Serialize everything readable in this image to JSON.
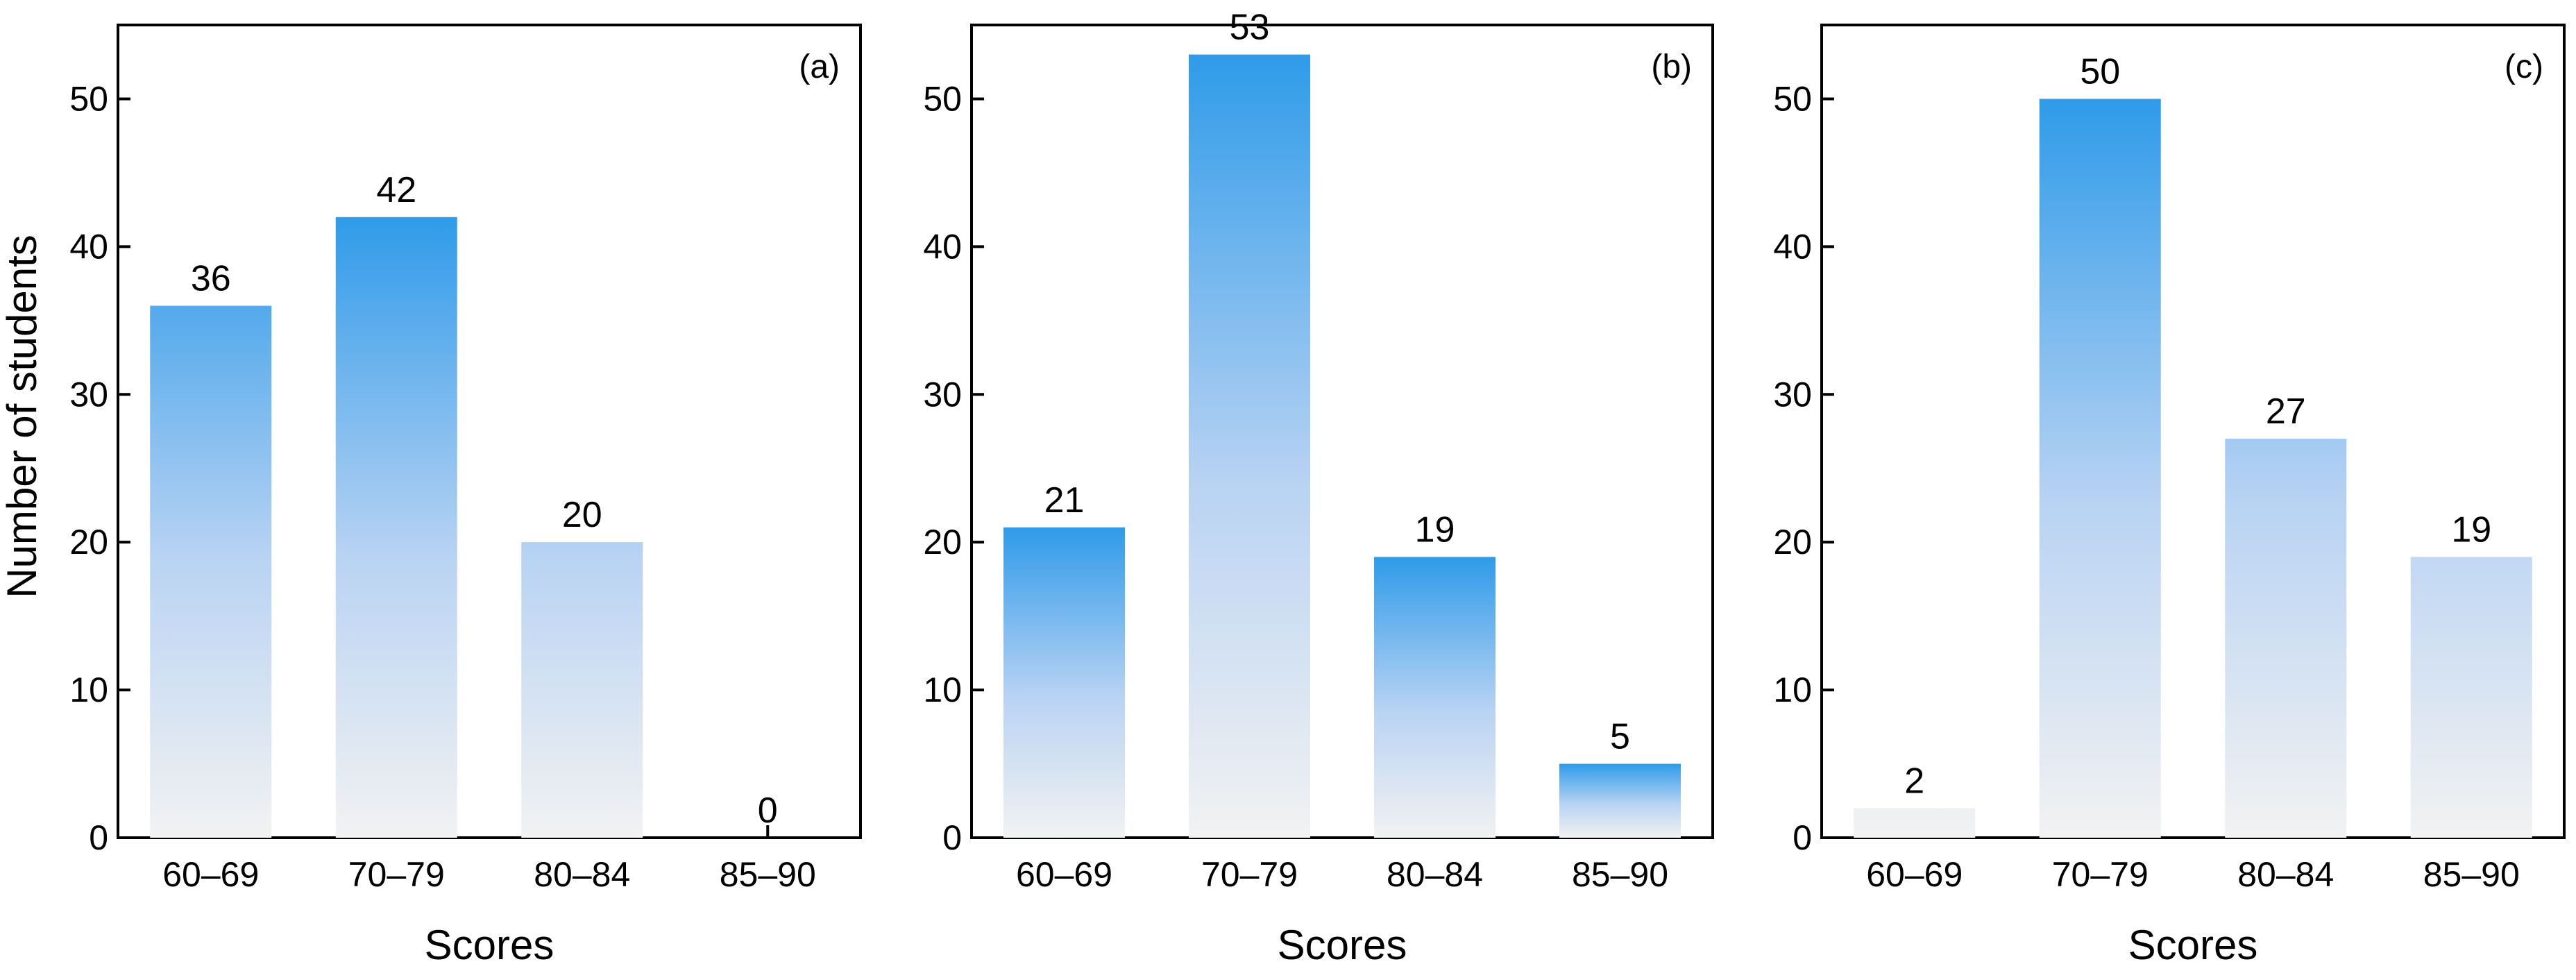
{
  "chart_data": [
    {
      "type": "bar",
      "panel_label": "(a)",
      "categories": [
        "60–69",
        "70–79",
        "80–84",
        "85–90"
      ],
      "values": [
        36,
        42,
        20,
        0
      ],
      "data_labels": [
        "36",
        "42",
        "20",
        "0"
      ],
      "xlabel": "Scores",
      "ylabel": "Number of students",
      "ylim": [
        0,
        55
      ],
      "yticks": [
        "0",
        "10",
        "20",
        "30",
        "40",
        "50"
      ],
      "grid": false,
      "gradient": "vertical, light grey at base to blue at the tallest bar's top"
    },
    {
      "type": "bar",
      "panel_label": "(b)",
      "categories": [
        "60–69",
        "70–79",
        "80–84",
        "85–90"
      ],
      "values": [
        21,
        53,
        19,
        5
      ],
      "data_labels": [
        "21",
        "53",
        "19",
        "5"
      ],
      "xlabel": "Scores",
      "ylabel": "",
      "ylim": [
        0,
        55
      ],
      "yticks": [
        "0",
        "10",
        "20",
        "30",
        "40",
        "50"
      ],
      "grid": false,
      "gradient": "vertical, light grey at base to blue at top"
    },
    {
      "type": "bar",
      "panel_label": "(c)",
      "categories": [
        "60–69",
        "70–79",
        "80–84",
        "85–90"
      ],
      "values": [
        2,
        50,
        27,
        19
      ],
      "data_labels": [
        "2",
        "50",
        "27",
        "19"
      ],
      "xlabel": "Scores",
      "ylabel": "",
      "ylim": [
        0,
        55
      ],
      "yticks": [
        "0",
        "10",
        "20",
        "30",
        "40",
        "50"
      ],
      "grid": false,
      "gradient": "vertical, light grey at base to blue at the tallest bar's top"
    }
  ],
  "colors": {
    "bar_top": "#2f9be9",
    "bar_base": "#f2f2f2",
    "axis": "#000000"
  }
}
